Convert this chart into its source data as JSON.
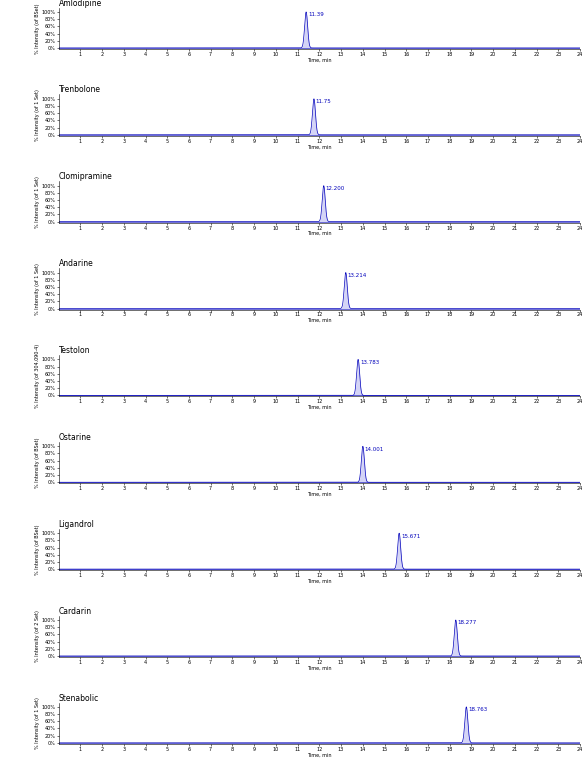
{
  "compounds": [
    {
      "name": "Amlodipine",
      "peak_time": 11.39,
      "ylabel": "% Intensity (of BSet)",
      "peak_label": "11.39"
    },
    {
      "name": "Trenbolone",
      "peak_time": 11.75,
      "ylabel": "% Intensity (of 1 Set)",
      "peak_label": "11.75"
    },
    {
      "name": "Clomipramine",
      "peak_time": 12.2,
      "ylabel": "% Intensity (of 1 Set)",
      "peak_label": "12.200"
    },
    {
      "name": "Andarine",
      "peak_time": 13.214,
      "ylabel": "% Intensity (of 1 Set)",
      "peak_label": "13.214"
    },
    {
      "name": "Testolon",
      "peak_time": 13.783,
      "ylabel": "% Intensity (of 304.090-4)",
      "peak_label": "13.783"
    },
    {
      "name": "Ostarine",
      "peak_time": 14.001,
      "ylabel": "% Intensity (of BSet)",
      "peak_label": "14.001"
    },
    {
      "name": "Ligandrol",
      "peak_time": 15.671,
      "ylabel": "% Intensity (of BSet)",
      "peak_label": "15.671"
    },
    {
      "name": "Cardarin",
      "peak_time": 18.277,
      "ylabel": "% Intensity (of 2 Set)",
      "peak_label": "18.277"
    },
    {
      "name": "Stenabolic",
      "peak_time": 18.763,
      "ylabel": "% Intensity (of 1 Set)",
      "peak_label": "18.763"
    }
  ],
  "xmin": 0,
  "xmax": 24,
  "xtick_start": 1,
  "xtick_end": 24,
  "yticks_labels": [
    "0%",
    "20%",
    "40%",
    "60%",
    "80%",
    "100%"
  ],
  "yticks_values": [
    0,
    20,
    40,
    60,
    80,
    100
  ],
  "peak_sigma": 0.07,
  "line_color": "#0000bb",
  "fill_color": "#aaaaee",
  "bg_color": "#ffffff",
  "compound_fontsize": 5.5,
  "axis_label_fontsize": 3.5,
  "tick_fontsize": 3.5,
  "peak_label_fontsize": 4.0,
  "xlabel": "Time, min"
}
